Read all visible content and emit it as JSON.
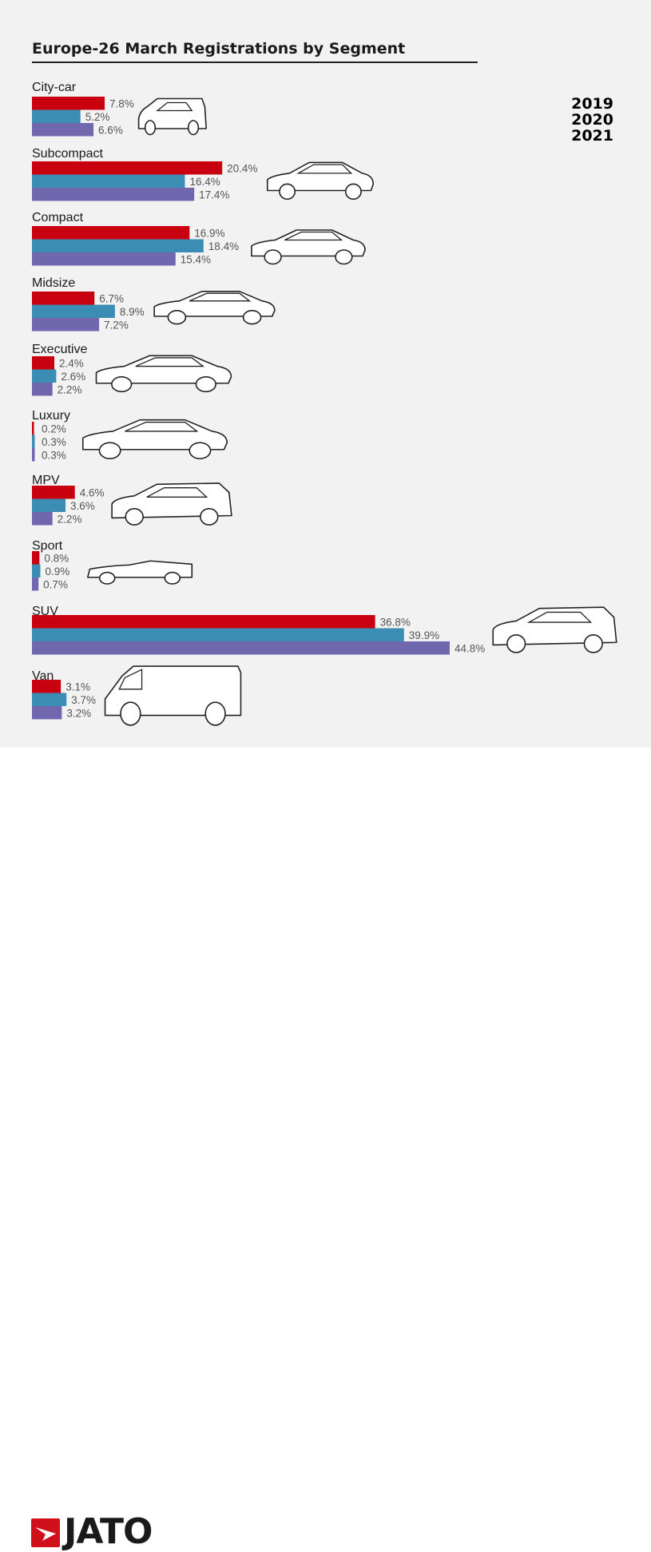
{
  "chart_data": {
    "type": "bar",
    "orientation": "horizontal",
    "title": "Europe-26 March Registrations by Segment",
    "categories": [
      "City-car",
      "Subcompact",
      "Compact",
      "Midsize",
      "Executive",
      "Luxury",
      "MPV",
      "Sport",
      "SUV",
      "Van"
    ],
    "series": [
      {
        "name": "2019",
        "color": "#c8000f",
        "values": [
          7.8,
          20.4,
          16.9,
          6.7,
          2.4,
          0.2,
          4.6,
          0.8,
          36.8,
          3.1
        ]
      },
      {
        "name": "2020",
        "color": "#3b8db3",
        "values": [
          5.2,
          16.4,
          18.4,
          8.9,
          2.6,
          0.3,
          3.6,
          0.9,
          39.9,
          3.7
        ]
      },
      {
        "name": "2021",
        "color": "#7167ae",
        "values": [
          6.6,
          17.4,
          15.4,
          7.2,
          2.2,
          0.3,
          2.2,
          0.7,
          44.8,
          3.2
        ]
      }
    ],
    "unit": "%",
    "legend_position": "top-right",
    "grid": false,
    "xlim": [
      0,
      50
    ]
  },
  "footer": {
    "logo_text": "JATO"
  }
}
